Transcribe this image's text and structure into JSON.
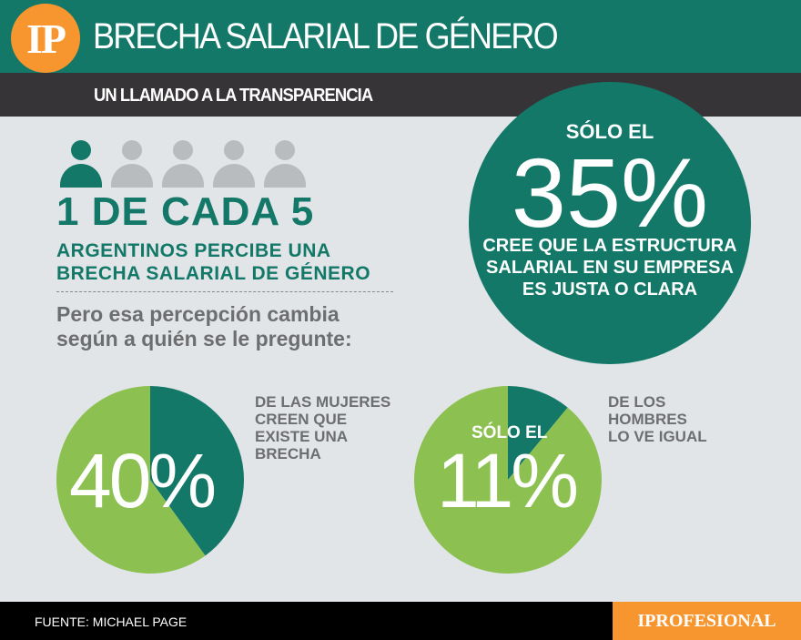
{
  "header": {
    "logo": "IP",
    "title": "BRECHA SALARIAL DE GÉNERO",
    "subtitle": "UN LLAMADO A LA TRANSPARENCIA"
  },
  "stat_people": {
    "highlighted": 1,
    "total": 5,
    "headline": "1 DE CADA 5",
    "line1": "ARGENTINOS PERCIBE UNA",
    "line2": "BRECHA SALARIAL DE GÉNERO",
    "note1": "Pero esa percepción cambia",
    "note2": "según a quién se le pregunte:"
  },
  "circle": {
    "prefix": "SÓLO EL",
    "value": "35%",
    "line1": "CREE QUE LA ESTRUCTURA",
    "line2": "SALARIAL EN SU EMPRESA",
    "line3": "ES JUSTA O CLARA"
  },
  "colors": {
    "teal": "#137868",
    "green": "#8cc152",
    "orange": "#f7962f",
    "grey": "#b9bcbf"
  },
  "chart_data": [
    {
      "type": "pie",
      "label": "40%",
      "values": [
        40,
        60
      ],
      "colors": [
        "#137868",
        "#8cc152"
      ],
      "caption": [
        "DE LAS MUJERES",
        "CREEN QUE",
        "EXISTE UNA",
        "BRECHA"
      ]
    },
    {
      "type": "pie",
      "prefix": "SÓLO EL",
      "label": "11%",
      "values": [
        11,
        89
      ],
      "colors": [
        "#137868",
        "#8cc152"
      ],
      "caption": [
        "DE LOS",
        "HOMBRES",
        "LO VE IGUAL"
      ]
    }
  ],
  "footer": {
    "source": "FUENTE: MICHAEL PAGE",
    "brand": "IPROFESIONAL"
  }
}
